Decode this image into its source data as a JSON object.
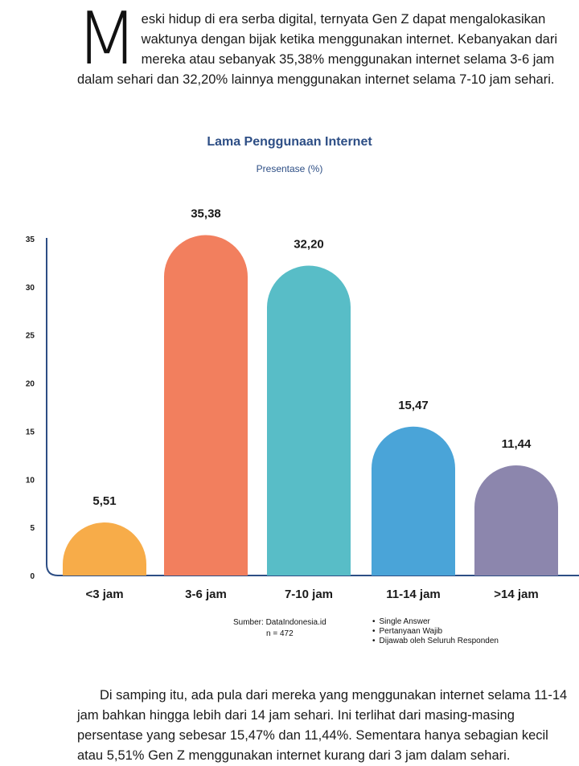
{
  "intro": {
    "dropcap": "M",
    "text": "eski hidup di era serba digital, ternyata Gen Z dapat mengalokasikan waktunya dengan bijak ketika menggunakan internet. Kebanyakan dari mereka atau sebanyak 35,38% menggunakan internet selama 3-6 jam dalam sehari dan 32,20% lainnya menggunakan internet selama 7-10 jam sehari."
  },
  "chart_data": {
    "type": "bar",
    "title": "Lama Penggunaan Internet",
    "subtitle": "Presentase (%)",
    "categories": [
      "<3 jam",
      "3-6 jam",
      "7-10 jam",
      "11-14 jam",
      ">14 jam"
    ],
    "values": [
      5.51,
      35.38,
      32.2,
      15.47,
      11.44
    ],
    "value_labels": [
      "5,51",
      "35,38",
      "32,20",
      "15,47",
      "11,44"
    ],
    "colors": [
      "#f7ac49",
      "#f27f5e",
      "#58bdc7",
      "#4aa4d8",
      "#8c86ad"
    ],
    "yticks": [
      0,
      5,
      10,
      15,
      20,
      25,
      30,
      35
    ],
    "ylim": [
      0,
      35
    ],
    "grid": false,
    "legend": "none"
  },
  "source": {
    "label": "Sumber: DataIndonesia.id",
    "n": "n = 472"
  },
  "notes": [
    "Single Answer",
    "Pertanyaan Wajib",
    "Dijawab oleh Seluruh Responden"
  ],
  "outro": {
    "text": "Di samping itu, ada pula dari mereka yang menggunakan internet selama 11-14 jam bahkan hingga lebih dari 14 jam sehari. Ini terlihat dari masing-masing persentase yang sebesar 15,47% dan 11,44%. Sementara hanya sebagian kecil atau 5,51% Gen Z menggunakan internet kurang dari 3 jam dalam sehari."
  }
}
